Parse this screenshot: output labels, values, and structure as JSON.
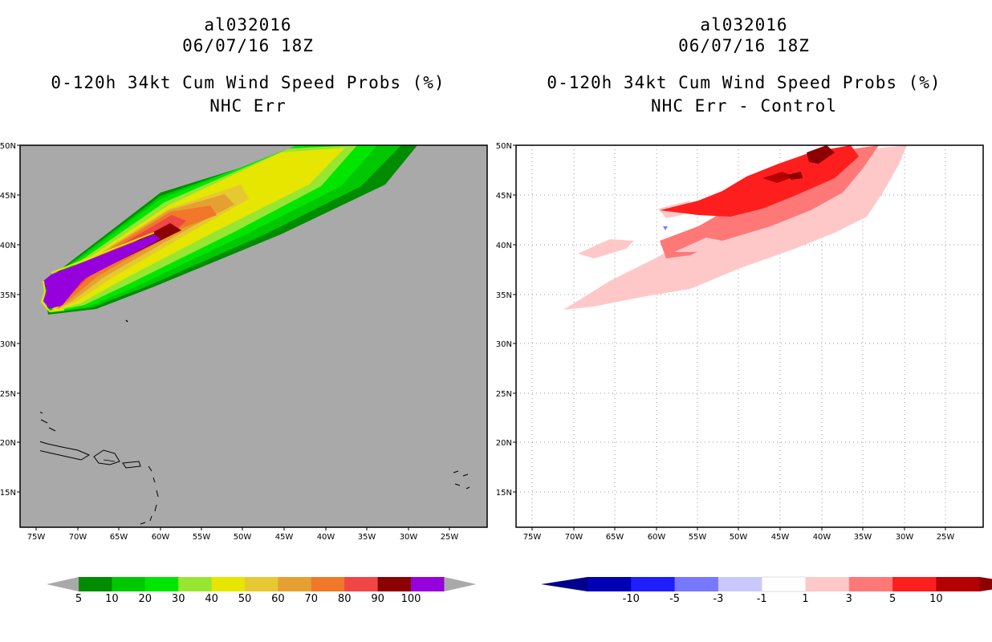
{
  "left_panel": {
    "storm_id": "al032016",
    "datetime": "06/07/16 18Z",
    "title": "0-120h 34kt Cum Wind Speed Probs (%)",
    "subtitle": "NHC Err",
    "background_color": "#a9a9a9",
    "colorbar": {
      "labels": [
        "5",
        "10",
        "20",
        "30",
        "40",
        "50",
        "60",
        "70",
        "80",
        "90",
        "100"
      ],
      "colors": [
        "#008c00",
        "#00c800",
        "#00e600",
        "#96e632",
        "#e6e600",
        "#e6c832",
        "#e6a032",
        "#f07828",
        "#f04646",
        "#8c0000",
        "#9600dc"
      ],
      "end_color": "#a9a9a9"
    }
  },
  "right_panel": {
    "storm_id": "al032016",
    "datetime": "06/07/16 18Z",
    "title": "0-120h 34kt Cum Wind Speed Probs (%)",
    "subtitle": "NHC Err - Control",
    "background_color": "#ffffff",
    "colorbar": {
      "labels": [
        "-10",
        "-5",
        "-3",
        "-1",
        "1",
        "3",
        "5",
        "10"
      ],
      "colors": [
        "#0000b4",
        "#1e1eff",
        "#7878ff",
        "#c8c8ff",
        "#ffffff",
        "#ffc8c8",
        "#ff7878",
        "#ff1e1e",
        "#b40000"
      ],
      "neg_end_color": "#00008c",
      "pos_end_color": "#8c0000"
    }
  },
  "axes": {
    "lat_labels": [
      "50N",
      "45N",
      "40N",
      "35N",
      "30N",
      "25N",
      "20N",
      "15N"
    ],
    "lon_labels": [
      "75W",
      "70W",
      "65W",
      "60W",
      "55W",
      "50W",
      "45W",
      "40W",
      "35W",
      "30W",
      "25W"
    ]
  }
}
